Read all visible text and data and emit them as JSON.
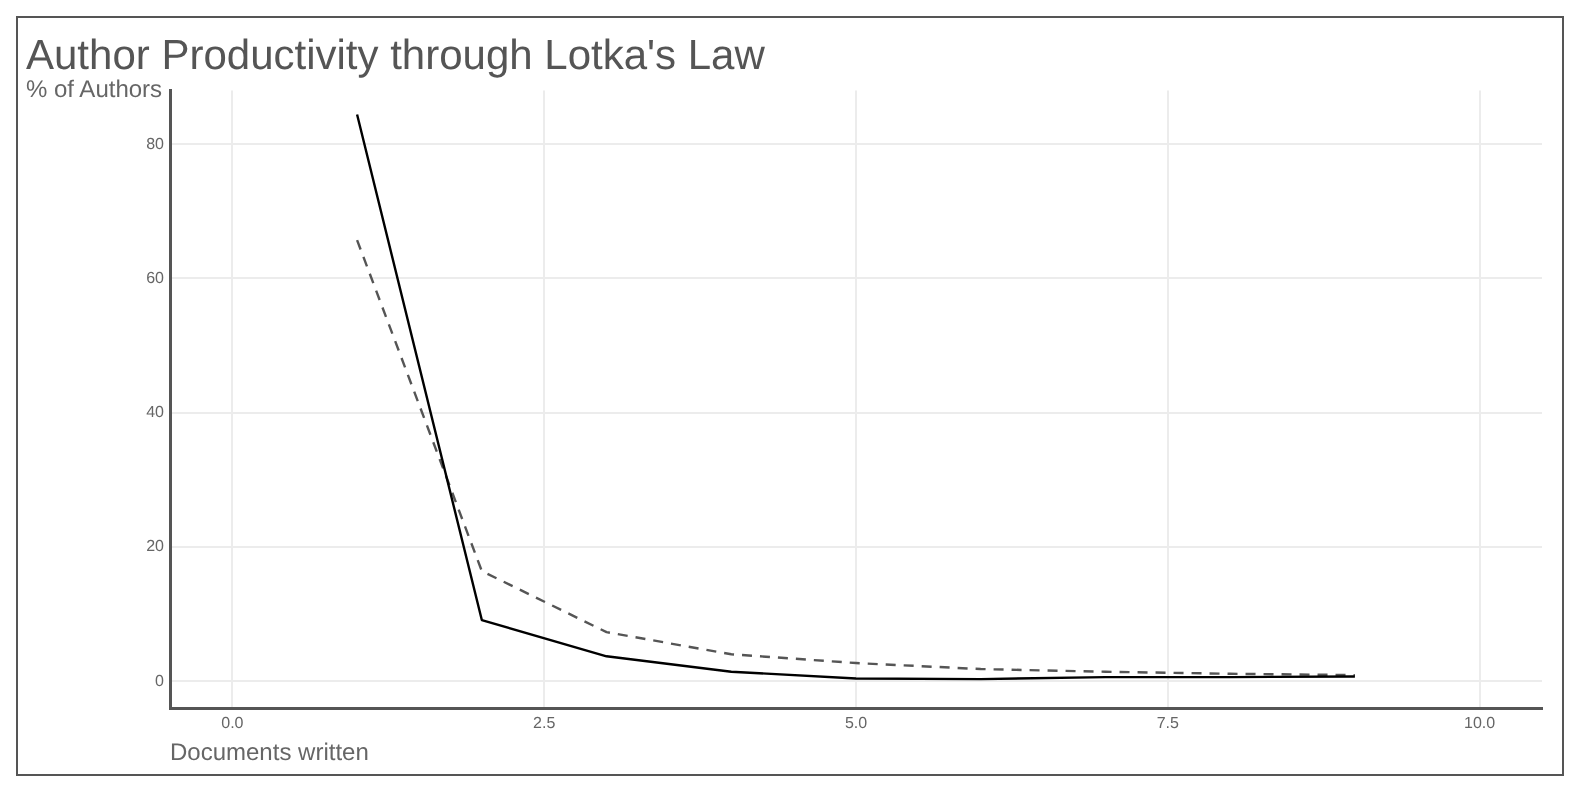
{
  "chart_data": {
    "type": "line",
    "title": "Author Productivity through Lotka's Law",
    "xlabel": "Documents written",
    "ylabel": "% of Authors",
    "x": [
      1,
      2,
      3,
      4,
      5,
      6,
      7,
      8,
      9
    ],
    "series": [
      {
        "color": "#000000",
        "line_style": "solid",
        "values": [
          84.4,
          9.1,
          3.7,
          1.4,
          0.4,
          0.3,
          0.6,
          0.6,
          0.7
        ]
      },
      {
        "color": "#555555",
        "line_style": "dashed",
        "values": [
          65.7,
          16.4,
          7.3,
          4.0,
          2.7,
          1.8,
          1.4,
          1.1,
          0.9
        ]
      }
    ],
    "xlim": [
      -0.5,
      10.5
    ],
    "xticks": [
      {
        "value": 0,
        "label": "0.0"
      },
      2.5,
      {
        "value": 5,
        "label": "5.0"
      },
      7.5,
      {
        "value": 10,
        "label": "10.0"
      }
    ],
    "ylim": [
      -4,
      88
    ],
    "yticks": [
      0,
      20,
      40,
      60,
      80
    ],
    "grid": true,
    "legend": false,
    "marker": "none"
  }
}
